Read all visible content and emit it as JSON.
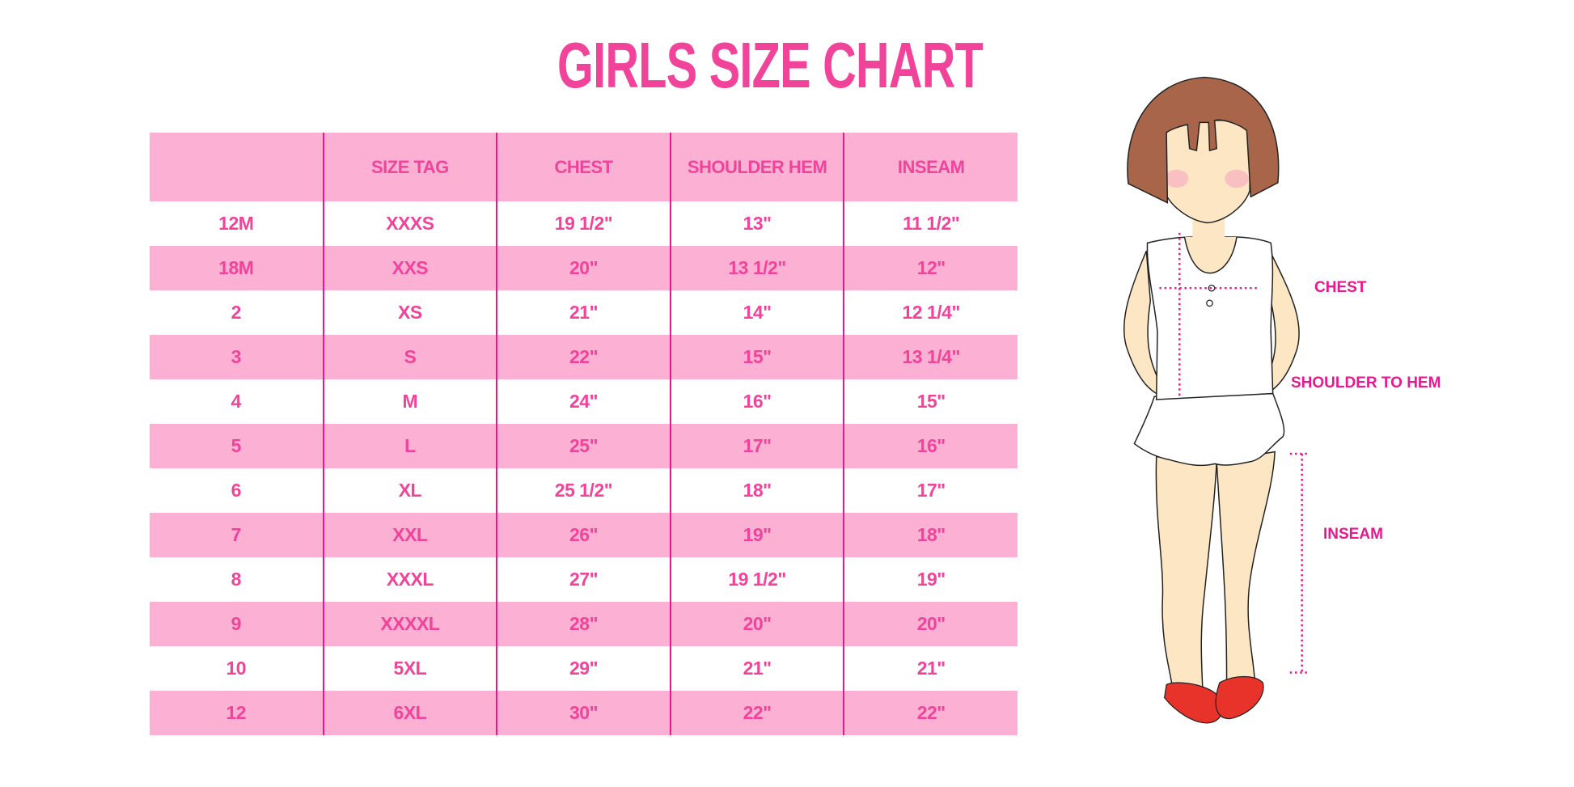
{
  "title": "GIRLS SIZE CHART",
  "colors": {
    "accent": "#f2439b",
    "band": "#fbb0d4",
    "divider": "#e8188f",
    "shoe": "#e8332a",
    "hair": "#a8654a",
    "skin": "#fde6c4"
  },
  "table": {
    "headers": [
      "",
      "SIZE TAG",
      "CHEST",
      "SHOULDER HEM",
      "INSEAM"
    ],
    "rows": [
      [
        "12M",
        "XXXS",
        "19 1/2\"",
        "13\"",
        "11 1/2\""
      ],
      [
        "18M",
        "XXS",
        "20\"",
        "13 1/2\"",
        "12\""
      ],
      [
        "2",
        "XS",
        "21\"",
        "14\"",
        "12 1/4\""
      ],
      [
        "3",
        "S",
        "22\"",
        "15\"",
        "13 1/4\""
      ],
      [
        "4",
        "M",
        "24\"",
        "16\"",
        "15\""
      ],
      [
        "5",
        "L",
        "25\"",
        "17\"",
        "16\""
      ],
      [
        "6",
        "XL",
        "25 1/2\"",
        "18\"",
        "17\""
      ],
      [
        "7",
        "XXL",
        "26\"",
        "19\"",
        "18\""
      ],
      [
        "8",
        "XXXL",
        "27\"",
        "19 1/2\"",
        "19\""
      ],
      [
        "9",
        "XXXXL",
        "28\"",
        "20\"",
        "20\""
      ],
      [
        "10",
        "5XL",
        "29\"",
        "21\"",
        "21\""
      ],
      [
        "12",
        "6XL",
        "30\"",
        "22\"",
        "22\""
      ]
    ]
  },
  "figure": {
    "labels": {
      "chest": "CHEST",
      "shoulder_to_hem": "SHOULDER TO HEM",
      "inseam": "INSEAM"
    }
  }
}
